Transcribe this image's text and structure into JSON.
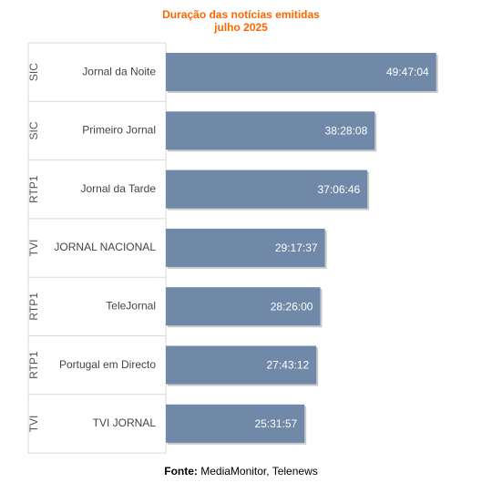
{
  "chart_data": {
    "type": "bar",
    "orientation": "horizontal",
    "title": [
      "Duração das notícias emitidas",
      "julho 2025"
    ],
    "categories": [
      {
        "channel": "SIC",
        "program": "Jornal da Noite",
        "label": "49:47:04",
        "value_hours": 49.784
      },
      {
        "channel": "SIC",
        "program": "Primeiro Jornal",
        "label": "38:28:08",
        "value_hours": 38.469
      },
      {
        "channel": "RTP1",
        "program": "Jornal da Tarde",
        "label": "37:06:46",
        "value_hours": 37.113
      },
      {
        "channel": "TVI",
        "program": "JORNAL NACIONAL",
        "label": "29:17:37",
        "value_hours": 29.294
      },
      {
        "channel": "RTP1",
        "program": "TeleJornal",
        "label": "28:26:00",
        "value_hours": 28.433
      },
      {
        "channel": "RTP1",
        "program": "Portugal em Directo",
        "label": "27:43:12",
        "value_hours": 27.72
      },
      {
        "channel": "TVI",
        "program": "TVI JORNAL",
        "label": "25:31:57",
        "value_hours": 25.533
      }
    ],
    "xlim": [
      0,
      50
    ],
    "legend": "none",
    "grid": false,
    "bar_color": "#7189a8"
  },
  "source": {
    "label": "Fonte:",
    "text": "MediaMonitor, Telenews"
  }
}
